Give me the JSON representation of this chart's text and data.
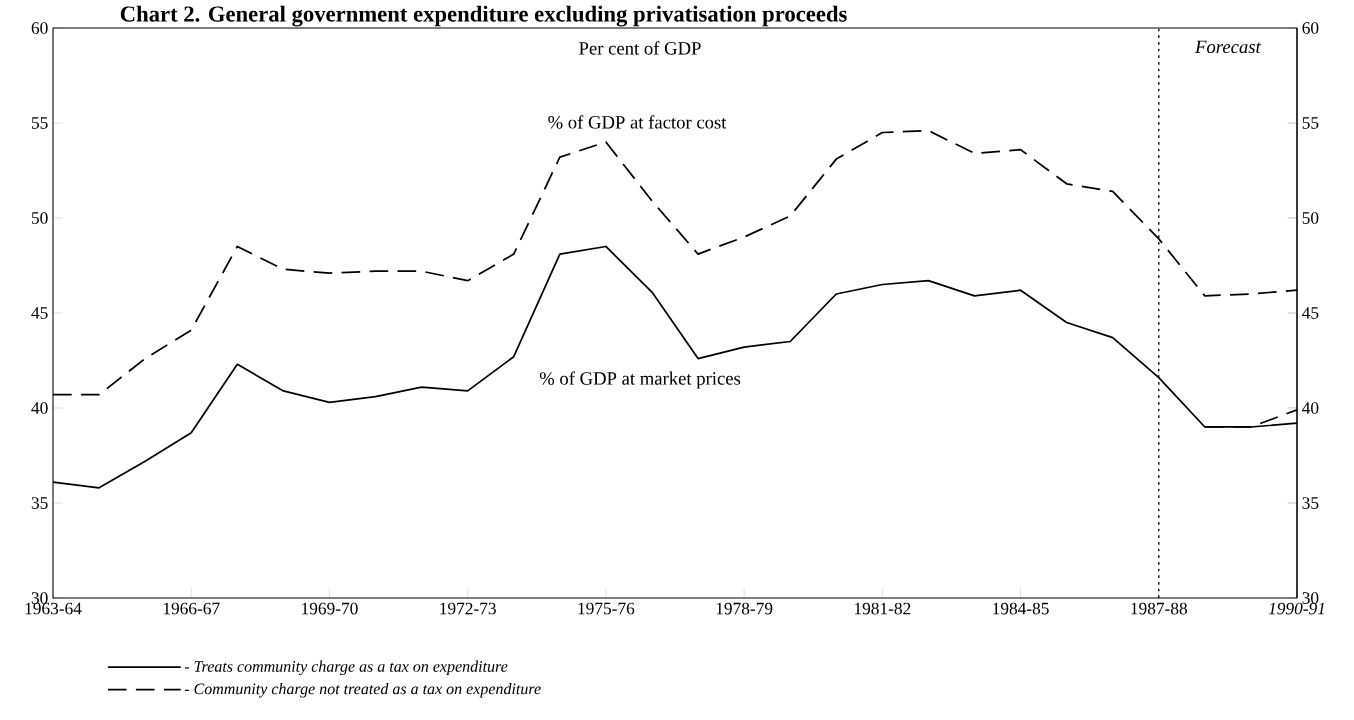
{
  "chart_data": {
    "type": "line",
    "title": "Chart 2.  General government expenditure excluding privatisation proceeds",
    "categories": [
      "1963-64",
      null,
      null,
      "1966-67",
      null,
      null,
      "1969-70",
      null,
      null,
      "1972-73",
      null,
      null,
      "1975-76",
      null,
      null,
      "1978-79",
      null,
      null,
      "1981-82",
      null,
      null,
      "1984-85",
      null,
      null,
      "1987-88",
      null,
      null,
      "1990-91"
    ],
    "series": [
      {
        "name": "- Treats community charge as a tax on expenditure",
        "color": "#000000",
        "line_style": "solid",
        "values": [
          36.1,
          35.8,
          37.2,
          38.7,
          42.3,
          40.9,
          40.3,
          40.6,
          41.1,
          40.9,
          42.7,
          48.1,
          48.5,
          46.1,
          42.6,
          43.2,
          43.5,
          46.0,
          46.5,
          46.7,
          45.9,
          46.2,
          44.5,
          43.7,
          41.6,
          39.0,
          39.0,
          39.2
        ]
      },
      {
        "color": "#000000",
        "line_style": "dashed",
        "values": [
          40.7,
          40.7,
          42.6,
          44.1,
          48.5,
          47.3,
          47.1,
          47.2,
          47.2,
          46.7,
          48.1,
          53.2,
          54.0,
          50.9,
          48.1,
          49.0,
          50.1,
          53.1,
          54.5,
          54.6,
          53.4,
          53.6,
          51.8,
          51.4,
          48.9,
          45.9,
          46.0,
          46.2
        ]
      },
      {
        "name": "- Community charge not treated as a tax on expenditure",
        "color": "#000000",
        "line_style": "dashed",
        "values": [
          null,
          null,
          null,
          null,
          null,
          null,
          null,
          null,
          null,
          null,
          null,
          null,
          null,
          null,
          null,
          null,
          null,
          null,
          null,
          null,
          null,
          null,
          null,
          null,
          null,
          39.0,
          39.0,
          39.9
        ]
      }
    ],
    "ylim": [
      30,
      60
    ],
    "yticks": [
      30,
      35,
      40,
      45,
      50,
      55,
      60
    ],
    "y2lim": [
      30,
      60
    ],
    "y2ticks": [
      30,
      35,
      40,
      45,
      50,
      55,
      60
    ],
    "ref_lines": [
      {
        "axis": "x",
        "value": "1987-88",
        "label": "Forecast",
        "line_style": "dotted",
        "color": "#000000"
      }
    ],
    "annotations": [
      "Per cent of GDP",
      "% of GDP at factor cost",
      "% of GDP at market prices"
    ],
    "legend": "bottom left",
    "grid": false
  }
}
